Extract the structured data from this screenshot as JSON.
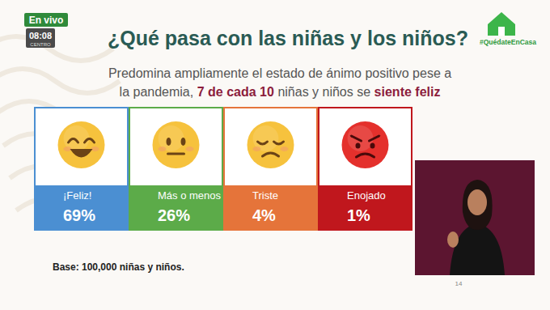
{
  "chart_data": {
    "type": "tiles",
    "title": "¿Qué pasa con las niñas y los niños?",
    "subtitle": [
      "Predomina ampliamente el estado de ánimo positivo pese a",
      "la pandemia,",
      "7 de cada 10",
      "niñas y niños se",
      "siente feliz"
    ],
    "categories": [
      "¡Feliz!",
      "Más o menos",
      "Triste",
      "Enojado"
    ],
    "values": [
      69,
      26,
      4,
      1
    ],
    "value_labels": [
      "69%",
      "26%",
      "4%",
      "1%"
    ],
    "colors": [
      "#4b8fd2",
      "#5cab49",
      "#e5743a",
      "#c0171d"
    ],
    "data_labels": true,
    "annotations": [
      "Base: 100,000 niñas y niños."
    ]
  },
  "overlay": {
    "live": "En vivo",
    "clock": "08:08",
    "zone": "CENTRO",
    "hashtag": "#QuédateEnCasa",
    "page": "14"
  }
}
